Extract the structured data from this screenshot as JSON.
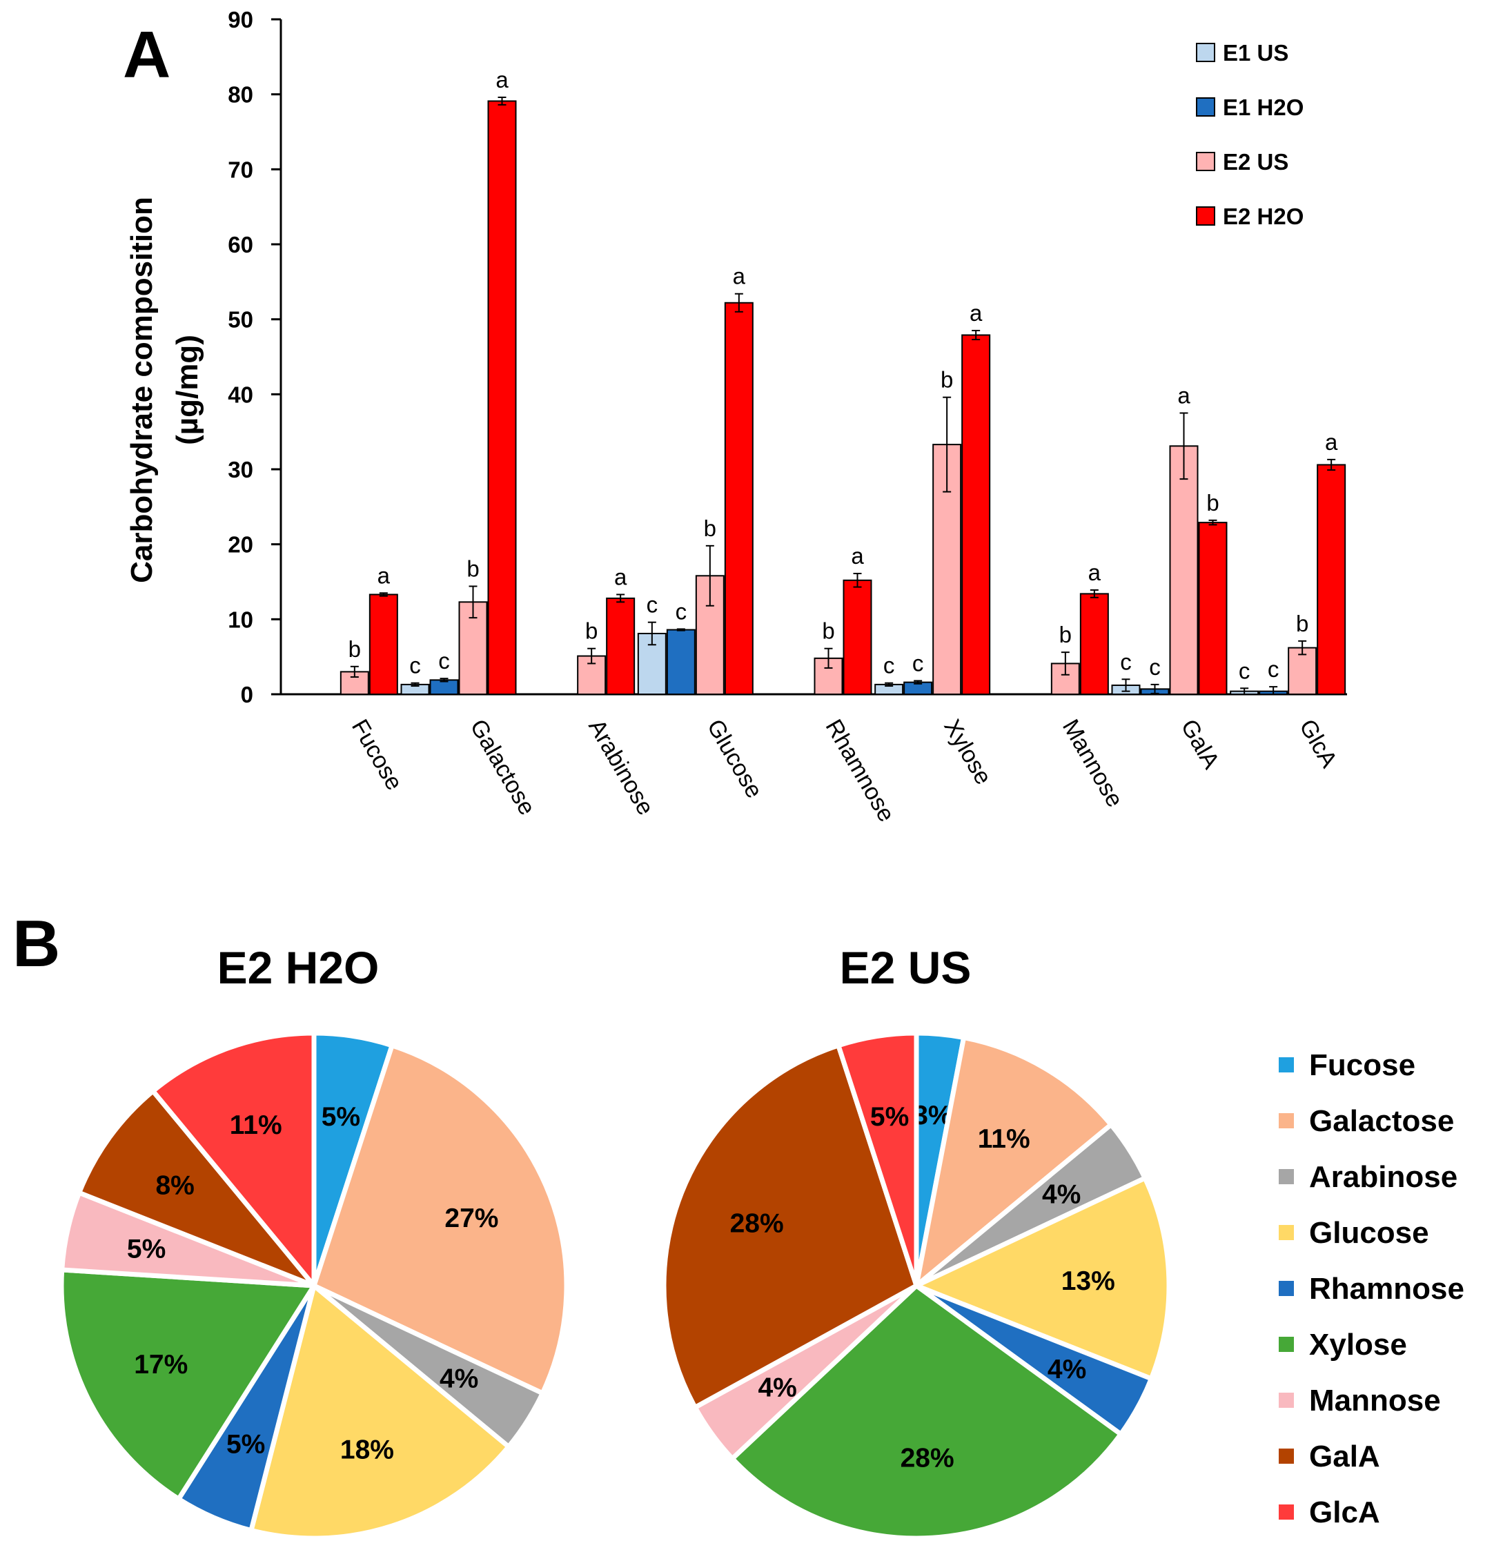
{
  "panels": {
    "a": "A",
    "b": "B"
  },
  "chart_data": [
    {
      "type": "bar",
      "ylabel_lines": [
        "Carbohydrate composition",
        "(µg/mg)"
      ],
      "ylim": [
        0,
        90
      ],
      "yticks": [
        0,
        10,
        20,
        30,
        40,
        50,
        60,
        70,
        80,
        90
      ],
      "legend_position": "top-right",
      "categories": [
        "Fucose",
        "Galactose",
        "Arabinose",
        "Glucose",
        "Rhamnose",
        "Xylose",
        "Mannose",
        "GalA",
        "GlcA"
      ],
      "series": [
        {
          "name": "E1 US",
          "color": "#bdd7ee",
          "values": [
            null,
            1.3,
            null,
            8.1,
            null,
            1.3,
            null,
            1.2,
            0.4
          ],
          "errors": [
            null,
            0.2,
            null,
            1.5,
            null,
            0.2,
            null,
            0.8,
            0.4
          ],
          "letters": [
            "",
            "c",
            "",
            "c",
            "",
            "c",
            "",
            "c",
            "c"
          ]
        },
        {
          "name": "E1 H2O",
          "color": "#1f6fc1",
          "values": [
            null,
            1.9,
            null,
            8.6,
            null,
            1.6,
            null,
            0.7,
            0.4
          ],
          "errors": [
            null,
            0.2,
            null,
            0.1,
            null,
            0.2,
            null,
            0.6,
            0.6
          ],
          "letters": [
            "",
            "c",
            "",
            "c",
            "",
            "c",
            "",
            "c",
            "c"
          ]
        },
        {
          "name": "E2 US",
          "color": "#ffb3b3",
          "values": [
            3.0,
            12.3,
            5.1,
            15.8,
            4.8,
            33.3,
            4.1,
            33.1,
            6.2
          ],
          "errors": [
            0.7,
            2.1,
            1.0,
            4.0,
            1.3,
            6.3,
            1.5,
            4.4,
            0.9
          ],
          "letters": [
            "b",
            "b",
            "b",
            "b",
            "b",
            "b",
            "b",
            "a",
            "b"
          ]
        },
        {
          "name": "E2 H2O",
          "color": "#ff0000",
          "values": [
            13.3,
            79.1,
            12.8,
            52.2,
            15.2,
            47.9,
            13.4,
            22.9,
            30.6
          ],
          "errors": [
            0.2,
            0.5,
            0.5,
            1.2,
            0.9,
            0.6,
            0.5,
            0.3,
            0.7
          ],
          "letters": [
            "a",
            "a",
            "a",
            "a",
            "a",
            "a",
            "a",
            "b",
            "a"
          ]
        }
      ]
    },
    {
      "type": "pie",
      "title": "E2 H2O",
      "slices": [
        {
          "label": "Fucose",
          "value": 5,
          "text": "5%"
        },
        {
          "label": "Galactose",
          "value": 27,
          "text": "27%"
        },
        {
          "label": "Arabinose",
          "value": 4,
          "text": "4%"
        },
        {
          "label": "Glucose",
          "value": 18,
          "text": "18%"
        },
        {
          "label": "Rhamnose",
          "value": 5,
          "text": "5%"
        },
        {
          "label": "Xylose",
          "value": 17,
          "text": "17%"
        },
        {
          "label": "Mannose",
          "value": 5,
          "text": "5%"
        },
        {
          "label": "GalA",
          "value": 8,
          "text": "8%"
        },
        {
          "label": "GlcA",
          "value": 11,
          "text": "11%"
        }
      ]
    },
    {
      "type": "pie",
      "title": "E2 US",
      "slices": [
        {
          "label": "Fucose",
          "value": 3,
          "text": "3%"
        },
        {
          "label": "Galactose",
          "value": 11,
          "text": "11%"
        },
        {
          "label": "Arabinose",
          "value": 4,
          "text": "4%"
        },
        {
          "label": "Glucose",
          "value": 13,
          "text": "13%"
        },
        {
          "label": "Rhamnose",
          "value": 4,
          "text": "4%"
        },
        {
          "label": "Xylose",
          "value": 28,
          "text": "28%"
        },
        {
          "label": "Mannose",
          "value": 4,
          "text": "4%"
        },
        {
          "label": "GalA",
          "value": 28,
          "text": "28%"
        },
        {
          "label": "GlcA",
          "value": 5,
          "text": "5%"
        }
      ]
    }
  ],
  "pie_legend": [
    {
      "label": "Fucose",
      "color": "#1fa0e0"
    },
    {
      "label": "Galactose",
      "color": "#fbb48a"
    },
    {
      "label": "Arabinose",
      "color": "#a6a6a6"
    },
    {
      "label": "Glucose",
      "color": "#ffd966"
    },
    {
      "label": "Rhamnose",
      "color": "#1f6fc1"
    },
    {
      "label": "Xylose",
      "color": "#46a837"
    },
    {
      "label": "Mannose",
      "color": "#f9b9bf"
    },
    {
      "label": "GalA",
      "color": "#b34300"
    },
    {
      "label": "GlcA",
      "color": "#ff3b3b"
    }
  ]
}
